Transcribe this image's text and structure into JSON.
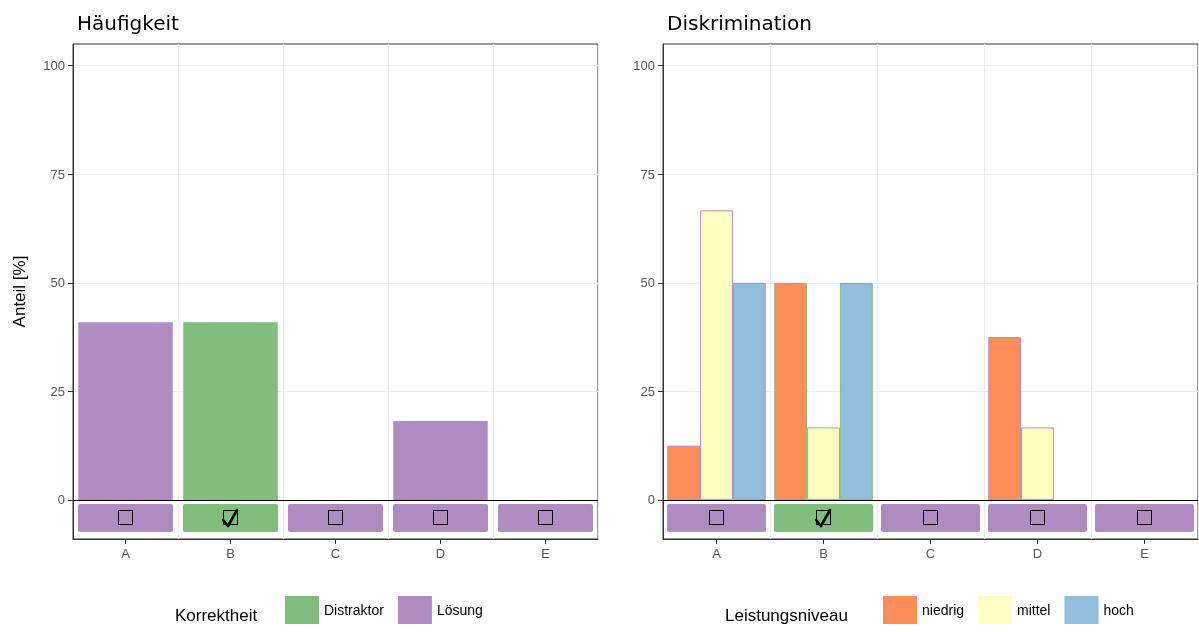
{
  "chart_data": [
    {
      "type": "bar",
      "title": "Häufigkeit",
      "ylabel": "Anteil [%]",
      "legend_title": "Korrektheit",
      "categories": [
        "A",
        "B",
        "C",
        "D",
        "E"
      ],
      "series": [
        {
          "name": "Distraktor",
          "color": "#7fbf7b",
          "values": [
            null,
            40.9,
            null,
            null,
            null
          ]
        },
        {
          "name": "Lösung",
          "color": "#af8dc3",
          "values": [
            40.9,
            null,
            0,
            18.2,
            0
          ]
        }
      ],
      "ylim": [
        -9,
        105
      ],
      "yticks": [
        0,
        25,
        50,
        75,
        100
      ],
      "grid": true,
      "legend": "bottom",
      "ref_lines": [
        {
          "axis": "y",
          "value": 0,
          "color": "#000000"
        }
      ]
    },
    {
      "type": "bar",
      "title": "Diskrimination",
      "legend_title": "Leistungsniveau",
      "categories": [
        "A",
        "B",
        "C",
        "D",
        "E"
      ],
      "series": [
        {
          "name": "niedrig",
          "color": "#fc8d59",
          "values": [
            12.5,
            50,
            0,
            37.5,
            0
          ]
        },
        {
          "name": "mittel",
          "color": "#ffffbf",
          "values": [
            66.7,
            16.7,
            0,
            16.7,
            0
          ]
        },
        {
          "name": "hoch",
          "color": "#91bfdb",
          "values": [
            50,
            50,
            0,
            0,
            0
          ]
        }
      ],
      "ylim": [
        -9,
        105
      ],
      "yticks": [
        0,
        25,
        50,
        75,
        100
      ],
      "grid": true,
      "legend": "bottom",
      "ref_lines": [
        {
          "axis": "y",
          "value": 0,
          "color": "#000000"
        }
      ]
    }
  ]
}
